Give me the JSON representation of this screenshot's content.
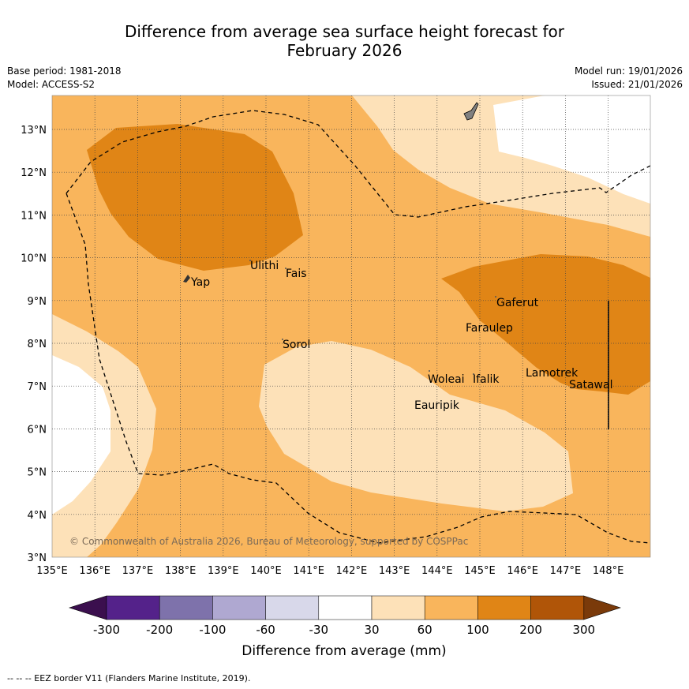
{
  "title": {
    "line1": "Difference from average sea surface height forecast for",
    "line2": "February 2026"
  },
  "meta": {
    "base_period": "Base period: 1981-2018",
    "model": "Model: ACCESS-S2",
    "model_run": "Model run: 19/01/2026",
    "issued": "Issued: 21/01/2026"
  },
  "axes": {
    "lon_ticks": [
      "135°E",
      "136°E",
      "137°E",
      "138°E",
      "139°E",
      "140°E",
      "141°E",
      "142°E",
      "143°E",
      "144°E",
      "145°E",
      "146°E",
      "147°E",
      "148°E"
    ],
    "lat_ticks": [
      "3°N",
      "4°N",
      "5°N",
      "6°N",
      "7°N",
      "8°N",
      "9°N",
      "10°N",
      "11°N",
      "12°N",
      "13°N"
    ]
  },
  "places": [
    {
      "name": "Yap"
    },
    {
      "name": "Ulithi"
    },
    {
      "name": "Fais"
    },
    {
      "name": "Sorol"
    },
    {
      "name": "Gaferut"
    },
    {
      "name": "Faraulep"
    },
    {
      "name": "Woleai"
    },
    {
      "name": "Ifalik"
    },
    {
      "name": "Eauripik"
    },
    {
      "name": "Lamotrek"
    },
    {
      "name": "Satawal"
    }
  ],
  "copyright": "© Commonwealth of Australia 2026, Bureau of Meteorology, supported by COSPPac",
  "legend": {
    "labels": [
      "-300",
      "-200",
      "-100",
      "-60",
      "-30",
      "30",
      "60",
      "100",
      "200",
      "300"
    ],
    "colors": [
      "#3b0f4e",
      "#54228a",
      "#7e72ab",
      "#afa8d1",
      "#d8d8ea",
      "#ffffff",
      "#fde1b8",
      "#f9b55c",
      "#e08516",
      "#b05508",
      "#7a3a0a"
    ],
    "title": "Difference from average (mm)"
  },
  "footnote": "--  --  -- EEZ border V11 (Flanders Marine Institute, 2019).",
  "colors": {
    "very_light": "#fde1b8",
    "light": "#f9b55c",
    "medium": "#e08516"
  }
}
